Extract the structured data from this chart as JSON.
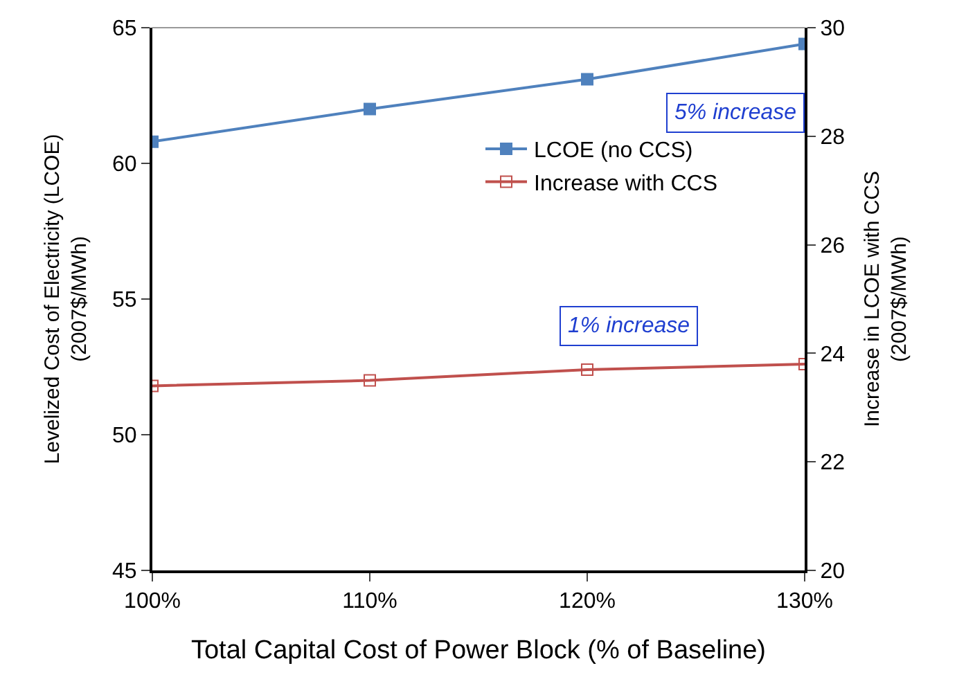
{
  "chart_data": {
    "type": "line",
    "xlabel": "Total Capital Cost of Power Block (% of Baseline)",
    "ylabel": "Levelized Cost of Electricity (LCOE)\n(2007$/MWh)",
    "y2label": "Increase in LCOE with CCS\n(2007$/MWh)",
    "categories": [
      "100%",
      "110%",
      "120%",
      "130%"
    ],
    "series": [
      {
        "name": "LCOE (no CCS)",
        "color": "#4f81bd",
        "values": [
          60.8,
          62.0,
          63.1,
          64.4
        ]
      },
      {
        "name": "Increase with CCS",
        "color": "#c0504d",
        "values": [
          23.4,
          23.5,
          23.7,
          23.8
        ],
        "axis": "y2"
      }
    ],
    "ylim": [
      45,
      65
    ],
    "yticks": [
      45,
      50,
      55,
      60,
      65
    ],
    "y2lim": [
      20,
      30
    ],
    "y2ticks": [
      20,
      22,
      24,
      26,
      28,
      30
    ],
    "annotations": [
      "5% increase",
      "1% increase"
    ],
    "marker": "square",
    "line_style": "solid",
    "legend": "top right"
  }
}
